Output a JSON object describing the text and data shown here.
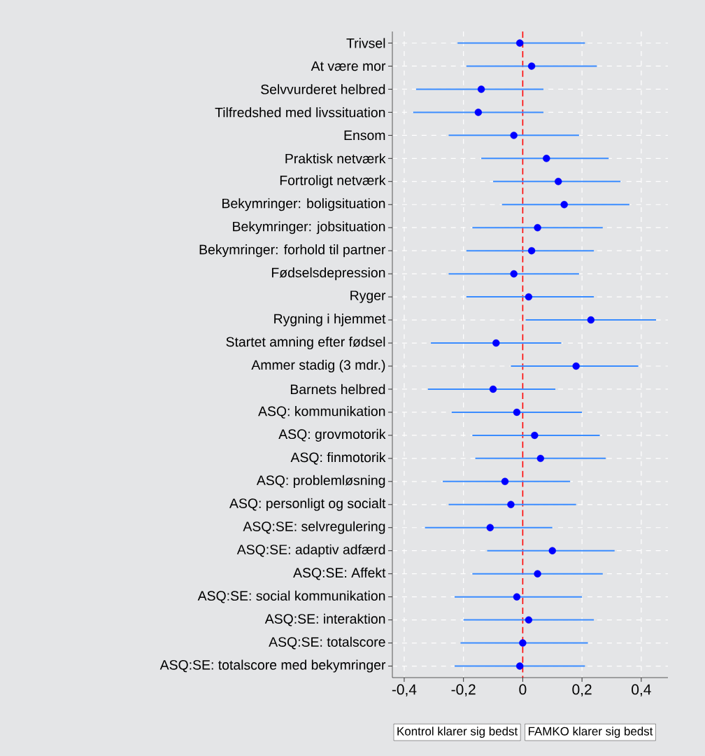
{
  "chart_data": {
    "type": "scatter",
    "orientation": "horizontal",
    "color": "#0000ff",
    "categories": [
      "Trivsel",
      "At være mor",
      "Selvvurderet helbred",
      "Tilfredshed med livssituation",
      "Ensom",
      "Praktisk netværk",
      "Fortroligt netværk",
      "Bekymringer: boligsituation",
      "Bekymringer: jobsituation",
      "Bekymringer: forhold til partner",
      "Fødselsdepression",
      "Ryger",
      "Rygning i hjemmet",
      "Startet amning efter fødsel",
      "Ammer stadig (3 mdr.)",
      "Barnets helbred",
      "ASQ: kommunikation",
      "ASQ: grovmotorik",
      "ASQ: finmotorik",
      "ASQ: problemløsning",
      "ASQ: personligt og socialt",
      "ASQ:SE: selvregulering",
      "ASQ:SE: adaptiv adfærd",
      "ASQ:SE: Affekt",
      "ASQ:SE: social kommunikation",
      "ASQ:SE: interaktion",
      "ASQ:SE: totalscore",
      "ASQ:SE: totalscore med bekymringer"
    ],
    "values": [
      -0.01,
      0.03,
      -0.14,
      -0.15,
      -0.03,
      0.08,
      0.12,
      0.14,
      0.05,
      0.03,
      -0.03,
      0.02,
      0.23,
      -0.09,
      0.18,
      -0.1,
      -0.02,
      0.04,
      0.06,
      -0.06,
      -0.04,
      -0.11,
      0.1,
      0.05,
      -0.02,
      0.02,
      0.0,
      -0.01
    ],
    "errors": [
      [
        -0.22,
        0.21
      ],
      [
        -0.19,
        0.25
      ],
      [
        -0.36,
        0.07
      ],
      [
        -0.37,
        0.07
      ],
      [
        -0.25,
        0.19
      ],
      [
        -0.14,
        0.29
      ],
      [
        -0.1,
        0.33
      ],
      [
        -0.07,
        0.36
      ],
      [
        -0.17,
        0.27
      ],
      [
        -0.19,
        0.24
      ],
      [
        -0.25,
        0.19
      ],
      [
        -0.19,
        0.24
      ],
      [
        0.01,
        0.45
      ],
      [
        -0.31,
        0.13
      ],
      [
        -0.04,
        0.39
      ],
      [
        -0.32,
        0.11
      ],
      [
        -0.24,
        0.2
      ],
      [
        -0.17,
        0.26
      ],
      [
        -0.16,
        0.28
      ],
      [
        -0.27,
        0.16
      ],
      [
        -0.25,
        0.18
      ],
      [
        -0.33,
        0.1
      ],
      [
        -0.12,
        0.31
      ],
      [
        -0.17,
        0.27
      ],
      [
        -0.23,
        0.2
      ],
      [
        -0.2,
        0.24
      ],
      [
        -0.21,
        0.22
      ],
      [
        -0.23,
        0.21
      ]
    ],
    "xlim": [
      -0.44,
      0.49
    ],
    "xticks": [
      {
        "value": -0.4,
        "label": "-0,4"
      },
      {
        "value": -0.2,
        "label": "-0,2"
      },
      0,
      {
        "value": 0.2,
        "label": "0,2"
      },
      {
        "value": 0.4,
        "label": "0,4"
      }
    ],
    "grid": true,
    "marker": "circle",
    "ref_lines": [
      {
        "axis": "x",
        "value": 0,
        "color": "#ff0000",
        "line_style": "dashed"
      }
    ],
    "annotations": [
      "Kontrol klarer sig bedst",
      "FAMKO klarer sig bedst"
    ]
  }
}
